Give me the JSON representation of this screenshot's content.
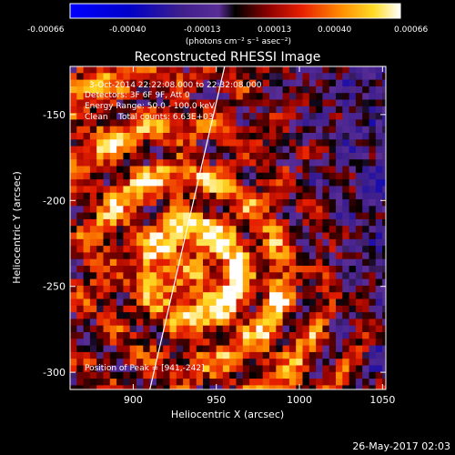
{
  "chart_data": {
    "type": "heatmap",
    "title": "Reconstructed RHESSI Image",
    "xlabel": "Heliocentric X (arcsec)",
    "ylabel": "Heliocentric Y (arcsec)",
    "xlim": [
      862,
      1052
    ],
    "ylim": [
      -310,
      -122
    ],
    "x_ticks": [
      900,
      950,
      1000,
      1050
    ],
    "y_ticks": [
      -150,
      -200,
      -250,
      -300
    ],
    "colorbar": {
      "ticks": [
        "-0.00066",
        "-0.00040",
        "-0.00013",
        "0.00013",
        "0.00040",
        "0.00066"
      ],
      "min": -0.00066,
      "max": 0.00066,
      "units_label": "(photons cm⁻² s⁻¹ asec⁻²)"
    },
    "annotations": [
      "3-Oct-2014 22:22:08.000 to 22:32:08.000",
      "Detectors: 3F 6F 9F, Att 0",
      "Energy Range: 50.0 - 100.0 keV",
      "Clean    Total counts: 6.63E+03"
    ],
    "peak_label": "Position of Peak = [941,-242]",
    "peak": [
      941,
      -242
    ],
    "limb_line": [
      [
        910,
        -310
      ],
      [
        955,
        -122
      ]
    ],
    "grid": false,
    "legend": "none"
  },
  "footer": {
    "date": "26-May-2017 02:03"
  }
}
